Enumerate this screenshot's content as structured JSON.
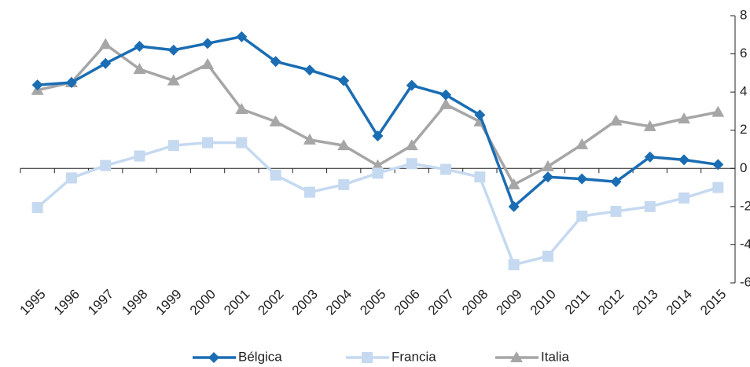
{
  "chart_data": {
    "type": "line",
    "categories": [
      "1995",
      "1996",
      "1997",
      "1998",
      "1999",
      "2000",
      "2001",
      "2002",
      "2003",
      "2004",
      "2005",
      "2006",
      "2007",
      "2008",
      "2009",
      "2010",
      "2011",
      "2012",
      "2013",
      "2014",
      "2015"
    ],
    "series": [
      {
        "name": "Bélgica",
        "color": "#1a6db3",
        "marker": "diamond",
        "values": [
          4.37,
          4.5,
          5.5,
          6.4,
          6.2,
          6.55,
          6.9,
          5.6,
          5.15,
          4.6,
          1.7,
          4.35,
          3.85,
          2.8,
          -2.0,
          -0.45,
          -0.55,
          -0.7,
          0.6,
          0.45,
          0.2
        ]
      },
      {
        "name": "Francia",
        "color": "#c5d9f1",
        "marker": "square",
        "values": [
          -2.05,
          -0.5,
          0.15,
          0.65,
          1.2,
          1.35,
          1.35,
          -0.35,
          -1.25,
          -0.85,
          -0.25,
          0.25,
          -0.05,
          -0.45,
          -5.05,
          -4.6,
          -2.5,
          -2.25,
          -2.0,
          -1.55,
          -1.0
        ]
      },
      {
        "name": "Italia",
        "color": "#a6a6a6",
        "marker": "triangle",
        "values": [
          4.1,
          4.5,
          6.5,
          5.2,
          4.6,
          5.45,
          3.1,
          2.45,
          1.5,
          1.2,
          0.15,
          1.2,
          3.35,
          2.45,
          -0.85,
          0.1,
          1.25,
          2.5,
          2.2,
          2.6,
          2.95
        ]
      }
    ],
    "ylim": [
      -6,
      8
    ],
    "yticks": [
      -6,
      -4,
      -2,
      0,
      2,
      4,
      6,
      8
    ],
    "y_axis_side": "right",
    "legend": "bottom"
  }
}
